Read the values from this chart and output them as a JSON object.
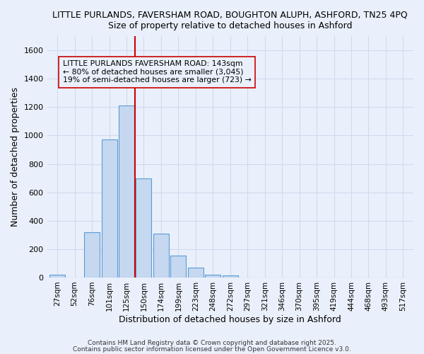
{
  "title_line1": "LITTLE PURLANDS, FAVERSHAM ROAD, BOUGHTON ALUPH, ASHFORD, TN25 4PQ",
  "title_line2": "Size of property relative to detached houses in Ashford",
  "xlabel": "Distribution of detached houses by size in Ashford",
  "ylabel": "Number of detached properties",
  "categories": [
    "27sqm",
    "52sqm",
    "76sqm",
    "101sqm",
    "125sqm",
    "150sqm",
    "174sqm",
    "199sqm",
    "223sqm",
    "248sqm",
    "272sqm",
    "297sqm",
    "321sqm",
    "346sqm",
    "370sqm",
    "395sqm",
    "419sqm",
    "444sqm",
    "468sqm",
    "493sqm",
    "517sqm"
  ],
  "values": [
    20,
    0,
    320,
    970,
    1210,
    700,
    310,
    155,
    70,
    20,
    15,
    0,
    0,
    0,
    0,
    0,
    0,
    0,
    0,
    0,
    0
  ],
  "bar_color": "#c5d8f0",
  "bar_edge_color": "#5b9bd5",
  "vline_x": 4.5,
  "vline_color": "#cc0000",
  "annotation_line1": "LITTLE PURLANDS FAVERSHAM ROAD: 143sqm",
  "annotation_line2": "← 80% of detached houses are smaller (3,045)",
  "annotation_line3": "19% of semi-detached houses are larger (723) →",
  "annotation_box_edgecolor": "#cc0000",
  "ylim": [
    0,
    1700
  ],
  "yticks": [
    0,
    200,
    400,
    600,
    800,
    1000,
    1200,
    1400,
    1600
  ],
  "footer1": "Contains HM Land Registry data © Crown copyright and database right 2025.",
  "footer2": "Contains public sector information licensed under the Open Government Licence v3.0.",
  "background_color": "#eaf0fb",
  "grid_color": "#d0daf0",
  "bar_width": 0.9
}
